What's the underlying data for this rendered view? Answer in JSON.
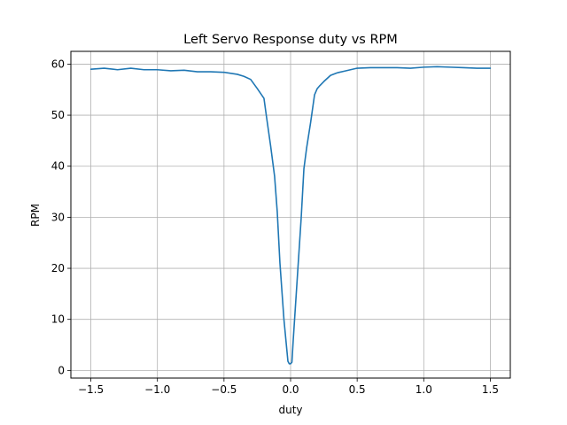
{
  "chart_data": {
    "type": "line",
    "title": "Left Servo Response duty vs RPM",
    "xlabel": "duty",
    "ylabel": "RPM",
    "xlim": [
      -1.65,
      1.65
    ],
    "ylim": [
      -1.5,
      62.5
    ],
    "xticks": [
      -1.5,
      -1.0,
      -0.5,
      0.0,
      0.5,
      1.0,
      1.5
    ],
    "xtick_labels": [
      "−1.5",
      "−1.0",
      "−0.5",
      "0.0",
      "0.5",
      "1.0",
      "1.5"
    ],
    "yticks": [
      0,
      10,
      20,
      30,
      40,
      50,
      60
    ],
    "ytick_labels": [
      "0",
      "10",
      "20",
      "30",
      "40",
      "50",
      "60"
    ],
    "grid": true,
    "line_color": "#1f77b4",
    "series": [
      {
        "x": [
          -1.5,
          -1.4,
          -1.3,
          -1.2,
          -1.1,
          -1.0,
          -0.9,
          -0.8,
          -0.7,
          -0.6,
          -0.5,
          -0.4,
          -0.35,
          -0.3,
          -0.25,
          -0.2,
          -0.18,
          -0.15,
          -0.12,
          -0.1,
          -0.08,
          -0.05,
          -0.02,
          -0.01,
          0.0,
          0.01,
          0.02,
          0.05,
          0.08,
          0.1,
          0.12,
          0.15,
          0.18,
          0.2,
          0.22,
          0.25,
          0.3,
          0.35,
          0.4,
          0.5,
          0.6,
          0.7,
          0.8,
          0.9,
          1.0,
          1.1,
          1.2,
          1.3,
          1.4,
          1.5
        ],
        "y": [
          59.0,
          59.2,
          58.9,
          59.2,
          58.9,
          58.9,
          58.7,
          58.8,
          58.5,
          58.5,
          58.4,
          58.0,
          57.6,
          57.0,
          55.2,
          53.3,
          49.5,
          44.0,
          38.0,
          31.0,
          21.0,
          10.0,
          1.8,
          1.3,
          1.3,
          1.6,
          6.0,
          18.0,
          30.0,
          39.5,
          43.5,
          48.5,
          54.0,
          55.2,
          55.8,
          56.6,
          57.8,
          58.3,
          58.6,
          59.2,
          59.3,
          59.3,
          59.3,
          59.2,
          59.4,
          59.5,
          59.4,
          59.3,
          59.2,
          59.2
        ]
      }
    ]
  }
}
